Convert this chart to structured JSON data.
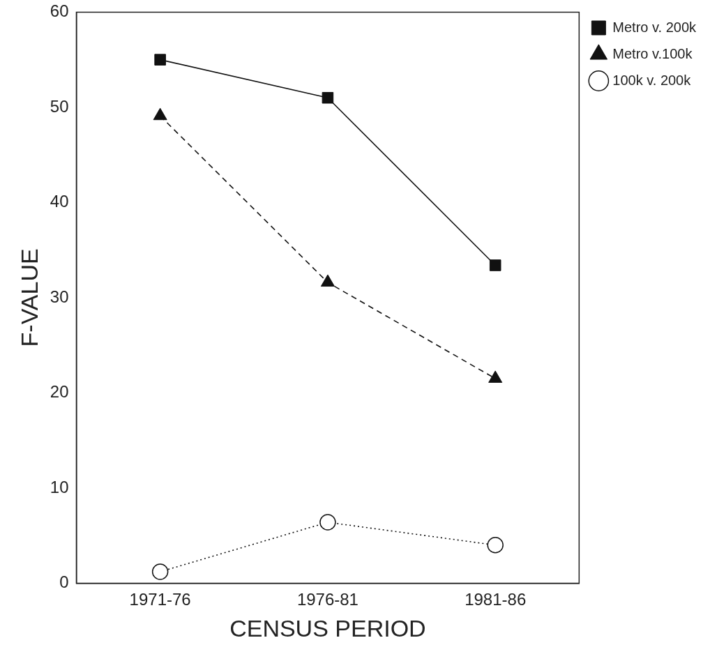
{
  "chart_data": {
    "type": "line",
    "xlabel": "CENSUS PERIOD",
    "ylabel": "F-VALUE",
    "categories": [
      "1971-76",
      "1976-81",
      "1981-86"
    ],
    "ylim": [
      0,
      60
    ],
    "yticks": [
      0,
      10,
      20,
      30,
      40,
      50,
      60
    ],
    "grid": false,
    "legend": "top right",
    "series": [
      {
        "name": "Metro v. 200k",
        "color": "#111111",
        "values": [
          55,
          51,
          33.4
        ],
        "marker": "square",
        "line_style": "solid"
      },
      {
        "name": "Metro v.100k",
        "color": "#111111",
        "values": [
          49.1,
          31.6,
          21.5
        ],
        "marker": "triangle",
        "line_style": "dashed"
      },
      {
        "name": "100k v. 200k",
        "color": "#111111",
        "values": [
          1.2,
          6.4,
          4
        ],
        "marker": "circle",
        "line_style": "dotted"
      }
    ]
  }
}
